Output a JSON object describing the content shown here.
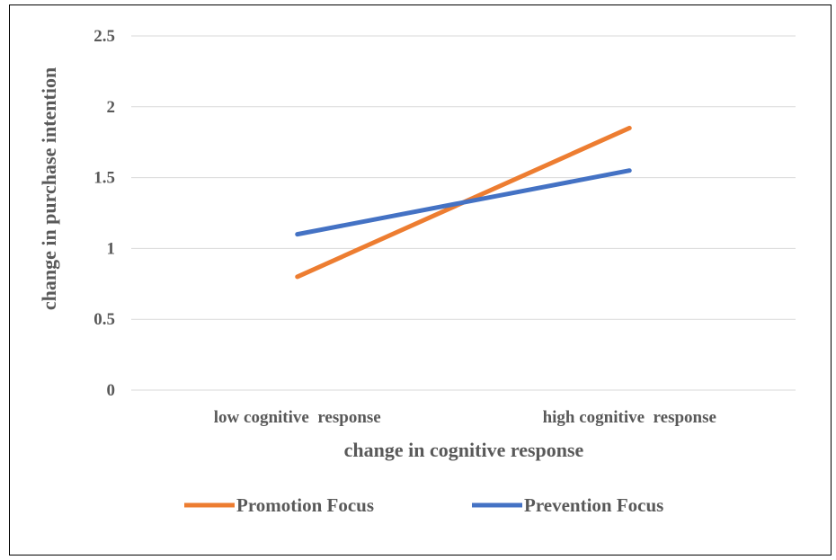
{
  "chart_data": {
    "type": "line",
    "categories": [
      "low cognitive  response",
      "high cognitive  response"
    ],
    "series": [
      {
        "name": "Promotion Focus",
        "values": [
          0.8,
          1.85
        ],
        "color": "#ED7D31"
      },
      {
        "name": "Prevention Focus",
        "values": [
          1.1,
          1.55
        ],
        "color": "#4472C4"
      }
    ],
    "xlabel": "change in cognitive response",
    "ylabel": "change in purchase intention",
    "ylim": [
      0,
      2.5
    ],
    "yticks": [
      "0",
      "0.5",
      "1",
      "1.5",
      "2",
      "2.5"
    ],
    "ytick_values": [
      0,
      0.5,
      1,
      1.5,
      2,
      2.5
    ],
    "grid": true,
    "legend": "bottom"
  }
}
